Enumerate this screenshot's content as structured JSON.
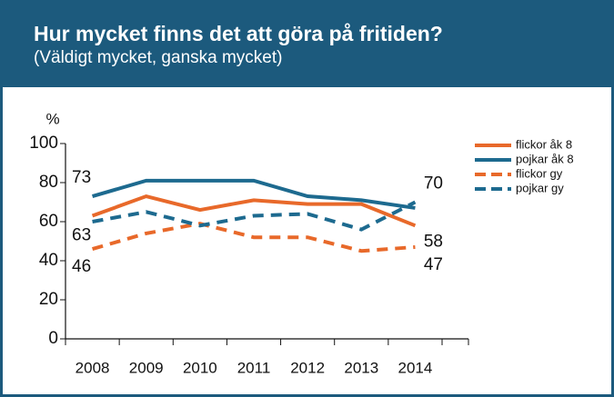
{
  "chart_data": {
    "type": "line",
    "title": "Hur mycket finns det att göra på fritiden?",
    "subtitle": "(Väldigt mycket, ganska mycket)",
    "y_label": "%",
    "categories": [
      "2008",
      "2009",
      "2010",
      "2011",
      "2012",
      "2013",
      "2014"
    ],
    "series": [
      {
        "name": "flickor åk 8",
        "color": "#e8692a",
        "dash": false,
        "values": [
          63,
          73,
          66,
          71,
          69,
          69,
          58
        ],
        "value_labels": [
          "63",
          null,
          null,
          null,
          null,
          null,
          "58"
        ]
      },
      {
        "name": "pojkar åk 8",
        "color": "#1d6a8f",
        "dash": false,
        "values": [
          73,
          81,
          81,
          81,
          73,
          71,
          67
        ],
        "value_labels": [
          "73",
          null,
          null,
          null,
          null,
          null,
          null
        ]
      },
      {
        "name": "flickor gy",
        "color": "#e8692a",
        "dash": true,
        "values": [
          46,
          54,
          59,
          52,
          52,
          45,
          47
        ],
        "value_labels": [
          "46",
          null,
          null,
          null,
          null,
          null,
          "47"
        ]
      },
      {
        "name": "pojkar gy",
        "color": "#1d6a8f",
        "dash": true,
        "values": [
          60,
          65,
          58,
          63,
          64,
          56,
          70
        ],
        "value_labels": [
          null,
          null,
          null,
          null,
          null,
          null,
          "70"
        ]
      }
    ],
    "ylim": [
      0,
      100
    ],
    "yticks": [
      0,
      20,
      40,
      60,
      80,
      100
    ],
    "legend": "right"
  }
}
